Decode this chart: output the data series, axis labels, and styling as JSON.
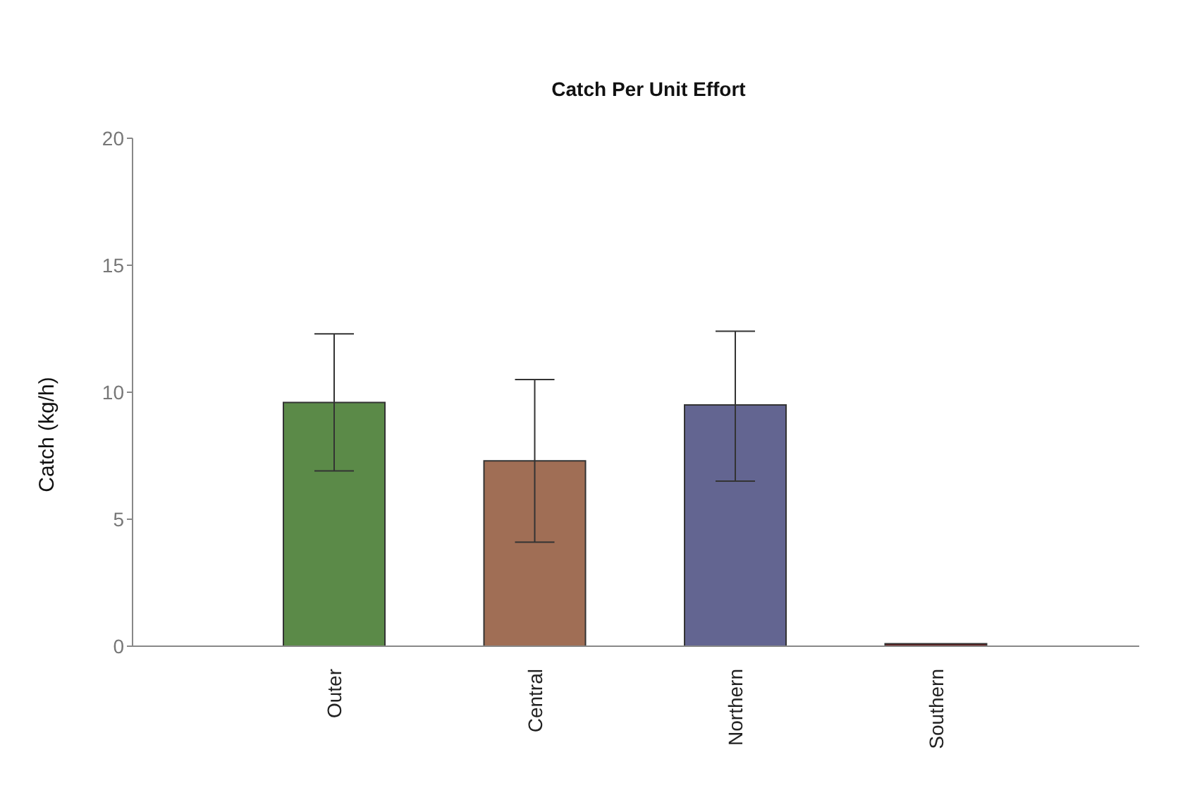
{
  "chart_data": {
    "type": "bar",
    "title": "Catch Per Unit Effort",
    "ylabel": "Catch (kg/h)",
    "categories": [
      "Outer",
      "Central",
      "Northern",
      "Southern"
    ],
    "values": [
      9.6,
      7.3,
      9.5,
      0.1
    ],
    "colors": [
      "#5b8a48",
      "#a06e55",
      "#636591",
      "#6a2020"
    ],
    "errors": [
      [
        6.9,
        12.3
      ],
      [
        4.1,
        10.5
      ],
      [
        6.5,
        12.4
      ],
      null
    ],
    "ylim": [
      0,
      20
    ],
    "yticks": [
      0,
      5,
      10,
      15,
      20
    ],
    "grid": false,
    "legend": false
  }
}
